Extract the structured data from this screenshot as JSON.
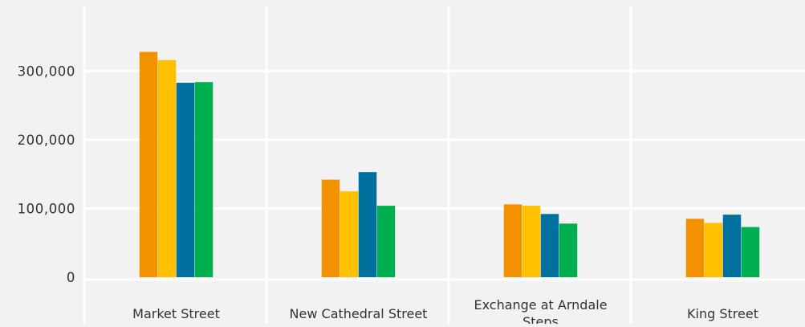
{
  "chart_data": {
    "type": "bar",
    "title": "",
    "xlabel": "",
    "ylabel": "",
    "categories": [
      "Market Street",
      "New Cathedral Street",
      "Exchange at Arndale Steps",
      "King Street"
    ],
    "category_label_lines": [
      [
        "Market Street"
      ],
      [
        "New Cathedral Street"
      ],
      [
        "Exchange at Arndale",
        "Steps"
      ],
      [
        "King Street"
      ]
    ],
    "series": [
      {
        "values": [
          328000,
          142000,
          106000,
          85000
        ],
        "color": "#f39200"
      },
      {
        "values": [
          316000,
          125000,
          104000,
          79000
        ],
        "color": "#ffc000"
      },
      {
        "values": [
          283000,
          153000,
          92000,
          91000
        ],
        "color": "#00709e"
      },
      {
        "values": [
          284000,
          104000,
          78000,
          73000
        ],
        "color": "#00b050"
      }
    ],
    "ylim": [
      0,
      380000
    ],
    "yticks": [
      0,
      100000,
      200000,
      300000
    ],
    "ytick_labels": [
      "0",
      "100,000",
      "200,000",
      "300,000"
    ],
    "grid": true,
    "legend": "none",
    "colors": {
      "background": "#f2f2f2",
      "gridline": "#ffffff",
      "text": "#333333"
    }
  }
}
